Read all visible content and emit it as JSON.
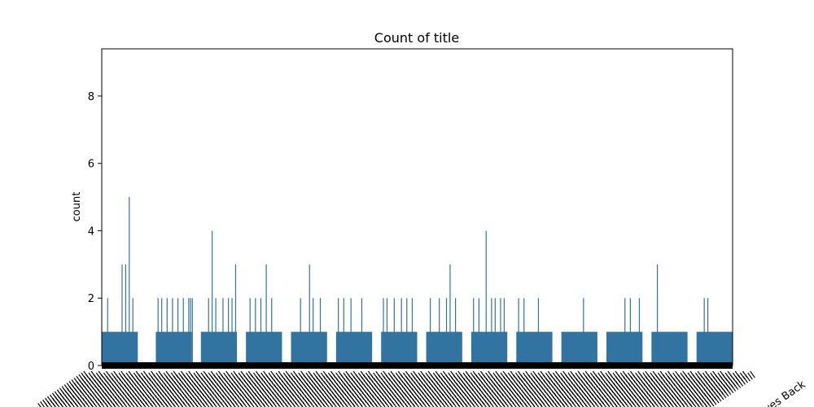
{
  "chart_data": {
    "type": "bar",
    "title": "Count of title",
    "xlabel": "",
    "ylabel": "count",
    "ylim": [
      0,
      9.4
    ],
    "yticks": [
      0,
      2,
      4,
      6,
      8
    ],
    "bar_color": "#3274a1",
    "x_tick_labels_visible": [
      "ves Back"
    ],
    "segments": [
      {
        "x_range": [
          0,
          2
        ],
        "baseline_count": 1,
        "peaks": [
          [
            0.3,
            2
          ],
          [
            1.1,
            3
          ],
          [
            1.3,
            3
          ],
          [
            1.5,
            5
          ],
          [
            1.7,
            2
          ]
        ]
      },
      {
        "x_range": [
          3,
          5
        ],
        "baseline_count": 1,
        "peaks": [
          [
            3.1,
            2
          ],
          [
            3.3,
            2
          ],
          [
            3.6,
            2
          ],
          [
            3.9,
            2
          ],
          [
            4.2,
            2
          ],
          [
            4.5,
            2
          ],
          [
            4.8,
            2
          ],
          [
            4.9,
            2
          ],
          [
            5.0,
            2
          ]
        ]
      },
      {
        "x_range": [
          5.5,
          7.5
        ],
        "baseline_count": 1,
        "peaks": [
          [
            5.9,
            2
          ],
          [
            6.1,
            4
          ],
          [
            6.3,
            2
          ],
          [
            6.7,
            2
          ],
          [
            7.0,
            2
          ],
          [
            7.2,
            2
          ],
          [
            7.4,
            3
          ]
        ]
      },
      {
        "x_range": [
          8,
          10
        ],
        "baseline_count": 1,
        "peaks": [
          [
            8.2,
            2
          ],
          [
            8.5,
            2
          ],
          [
            8.8,
            2
          ],
          [
            9.1,
            3
          ],
          [
            9.4,
            2
          ]
        ]
      },
      {
        "x_range": [
          10.5,
          12.5
        ],
        "baseline_count": 1,
        "peaks": [
          [
            11.0,
            2
          ],
          [
            11.5,
            3
          ],
          [
            11.7,
            2
          ],
          [
            12.1,
            2
          ]
        ]
      },
      {
        "x_range": [
          13,
          15
        ],
        "baseline_count": 1,
        "peaks": [
          [
            13.1,
            2
          ],
          [
            13.4,
            2
          ],
          [
            13.8,
            2
          ],
          [
            14.4,
            2
          ]
        ]
      },
      {
        "x_range": [
          15.5,
          17.5
        ],
        "baseline_count": 1,
        "peaks": [
          [
            15.6,
            2
          ],
          [
            15.8,
            2
          ],
          [
            16.2,
            2
          ],
          [
            16.6,
            2
          ],
          [
            16.9,
            2
          ],
          [
            17.2,
            2
          ]
        ]
      },
      {
        "x_range": [
          18,
          20
        ],
        "baseline_count": 1,
        "peaks": [
          [
            18.2,
            2
          ],
          [
            18.7,
            2
          ],
          [
            19.1,
            2
          ],
          [
            19.3,
            3
          ],
          [
            19.6,
            2
          ]
        ]
      },
      {
        "x_range": [
          20.5,
          22.5
        ],
        "baseline_count": 1,
        "peaks": [
          [
            20.6,
            2
          ],
          [
            20.9,
            2
          ],
          [
            21.3,
            4
          ],
          [
            21.6,
            2
          ],
          [
            21.8,
            2
          ],
          [
            22.1,
            2
          ],
          [
            22.3,
            2
          ]
        ]
      },
      {
        "x_range": [
          23,
          25
        ],
        "baseline_count": 1,
        "peaks": [
          [
            23.1,
            2
          ],
          [
            23.4,
            2
          ],
          [
            24.2,
            2
          ]
        ]
      },
      {
        "x_range": [
          25.5,
          27.5
        ],
        "baseline_count": 1,
        "peaks": [
          [
            26.7,
            2
          ]
        ]
      },
      {
        "x_range": [
          28,
          30
        ],
        "baseline_count": 1,
        "peaks": [
          [
            29.0,
            2
          ],
          [
            29.3,
            2
          ],
          [
            29.8,
            2
          ]
        ]
      },
      {
        "x_range": [
          30.5,
          32.5
        ],
        "baseline_count": 1,
        "peaks": [
          [
            30.8,
            3
          ]
        ]
      },
      {
        "x_range": [
          33,
          35
        ],
        "baseline_count": 1,
        "peaks": [
          [
            33.4,
            2
          ],
          [
            33.6,
            2
          ]
        ]
      }
    ]
  }
}
